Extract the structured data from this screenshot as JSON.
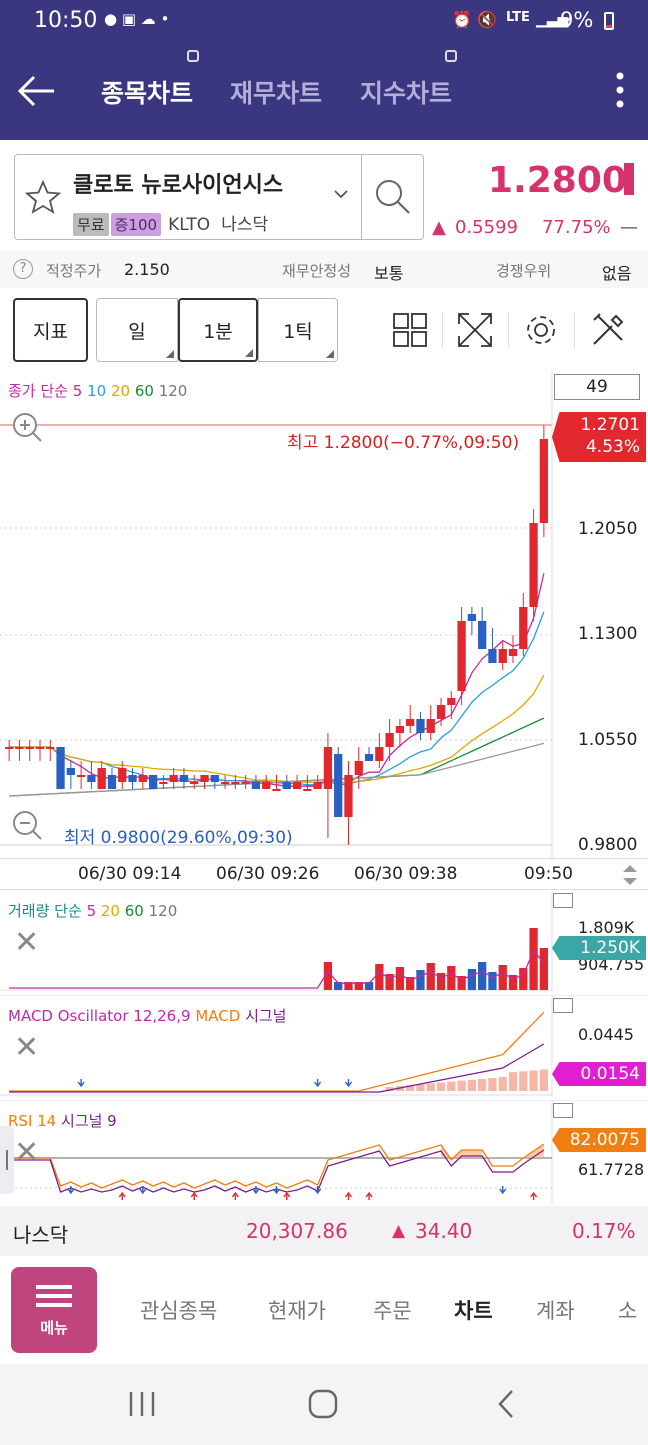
{
  "status": {
    "time": "10:50",
    "battery": "9%",
    "network": "LTE"
  },
  "tabs": [
    {
      "label": "종목차트"
    },
    {
      "label": "재무차트"
    },
    {
      "label": "지수차트"
    }
  ],
  "stock": {
    "name": "클로토 뉴로사이언시스",
    "tags": [
      "무료",
      "증100"
    ],
    "ticker": "KLTO",
    "market": "나스닥",
    "price": "1.2800",
    "change": "0.5599",
    "change_pct": "77.75%"
  },
  "info": {
    "fair_label": "적정주가",
    "fair_value": "2.150",
    "stability_label": "재무안정성",
    "stability_value": "보통",
    "compete_label": "경쟁우위",
    "compete_value": "없음"
  },
  "controls": {
    "indicator": "지표",
    "day": "일",
    "minute": "1분",
    "tick": "1틱"
  },
  "main": {
    "legend_prefix": "종가 단순",
    "ma": [
      "5",
      "10",
      "20",
      "60",
      "120"
    ],
    "count": "49",
    "high_label": "최고 1.2800(−0.77%,09:50)",
    "low_label": "최저 0.9800(29.60%,09:30)",
    "price_labels": [
      "1.2050",
      "1.1300",
      "1.0550",
      "0.9800"
    ],
    "current_tag": [
      "1.2701",
      "4.53%"
    ],
    "times": [
      "06/30 09:14",
      "06/30 09:26",
      "06/30 09:38",
      "09:50"
    ]
  },
  "volume": {
    "legend_prefix": "거래량 단순",
    "ma": [
      "5",
      "20",
      "60",
      "120"
    ],
    "label": "1.809K",
    "label2": "904.755",
    "tag": "1.250K"
  },
  "macd": {
    "legend_a": "MACD Oscillator 12,26,9",
    "legend_b": "MACD",
    "legend_c": "시그널",
    "label": "0.0445",
    "tag": "0.0154"
  },
  "rsi": {
    "legend_a": "RSI 14",
    "legend_b": "시그널 9",
    "tag": "82.0075",
    "label": "61.7728"
  },
  "index": {
    "name": "나스닥",
    "value": "20,307.86",
    "change": "34.40",
    "pct": "0.17%"
  },
  "bottom_nav": {
    "menu": "메뉴",
    "items": [
      "관심종목",
      "현재가",
      "주문",
      "차트",
      "계좌",
      "소"
    ]
  },
  "colors": {
    "up": "#e0282e",
    "down": "#2a5fc4",
    "header": "#3b3680",
    "accent": "#d6336c"
  }
}
